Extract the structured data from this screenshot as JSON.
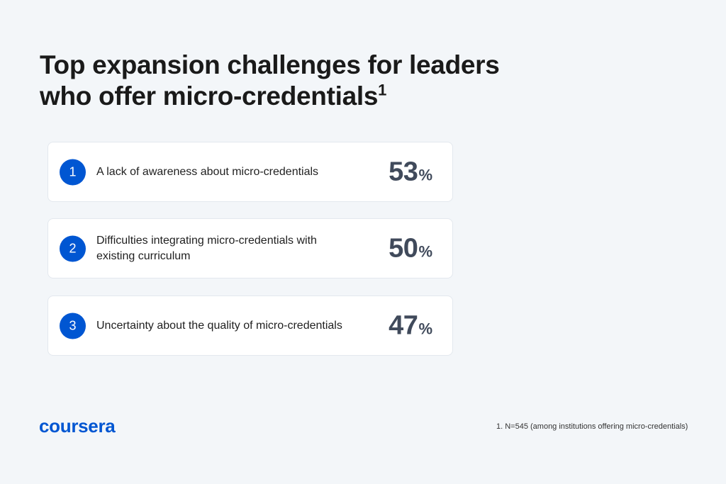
{
  "title": {
    "text": "Top expansion challenges for leaders who offer micro-credentials",
    "superscript": "1"
  },
  "items": [
    {
      "rank": "1",
      "label": "A lack of awareness about micro-credentials",
      "value": "53",
      "unit": "%"
    },
    {
      "rank": "2",
      "label": "Difficulties integrating micro-credentials with existing curriculum",
      "value": "50",
      "unit": "%"
    },
    {
      "rank": "3",
      "label": "Uncertainty about the quality of micro-credentials",
      "value": "47",
      "unit": "%"
    }
  ],
  "logo": {
    "text": "coursera",
    "color": "#0056d2"
  },
  "footnote": "1. N=545 (among institutions offering micro-credentials)",
  "colors": {
    "accent": "#0056d2",
    "background": "#f3f6f9",
    "value_text": "#404a5b"
  }
}
